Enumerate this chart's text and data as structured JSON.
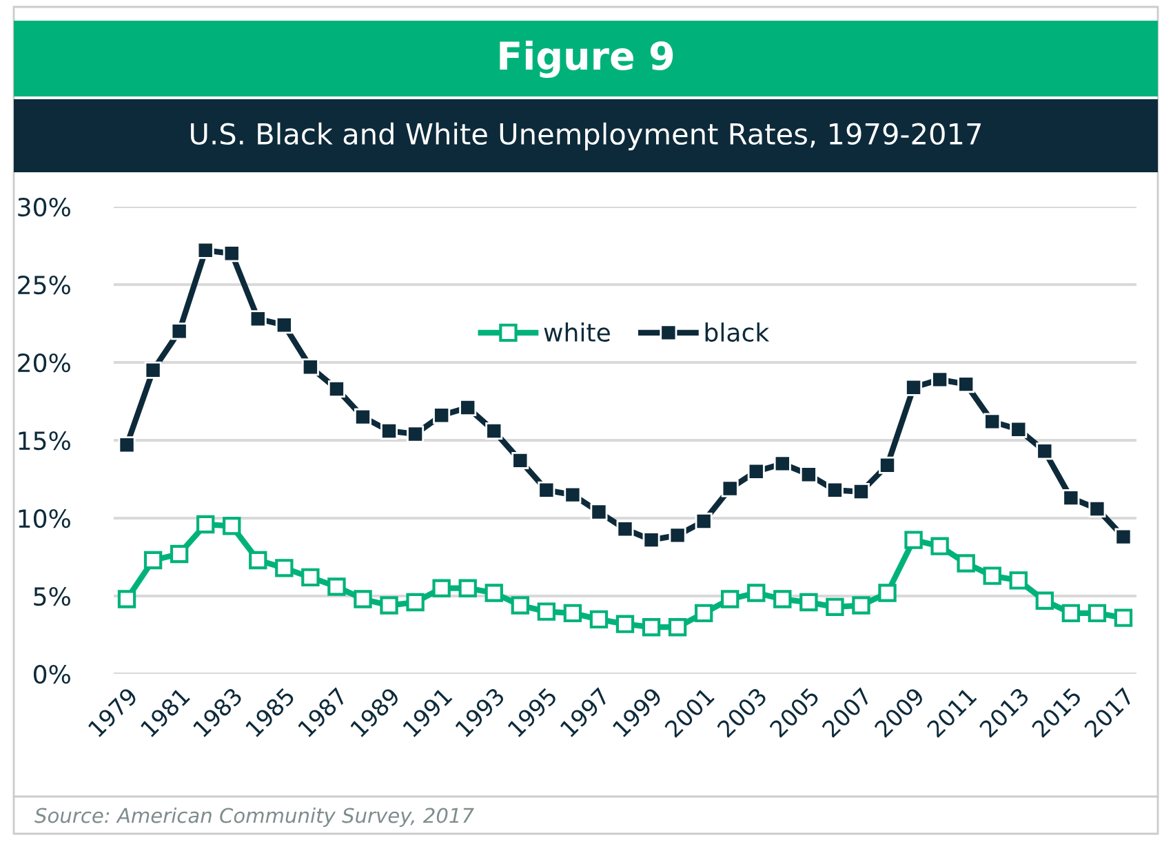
{
  "chart_data": {
    "type": "line",
    "title": "Figure 9",
    "subtitle": "U.S. Black and White Unemployment Rates, 1979-2017",
    "categories": [
      "1979",
      null,
      "1981",
      null,
      "1983",
      null,
      "1985",
      null,
      "1987",
      null,
      "1989",
      null,
      "1991",
      null,
      "1993",
      null,
      "1995",
      null,
      "1997",
      null,
      "1999",
      null,
      "2001",
      null,
      "2003",
      null,
      "2005",
      null,
      "2007",
      null,
      "2009",
      null,
      "2011",
      null,
      "2013",
      null,
      "2015",
      null,
      "2017"
    ],
    "series": [
      {
        "name": "white",
        "color": "#00b27a",
        "values": [
          4.8,
          7.3,
          7.7,
          9.6,
          9.5,
          7.3,
          6.8,
          6.2,
          5.6,
          4.8,
          4.4,
          4.6,
          5.5,
          5.5,
          5.2,
          4.4,
          4.0,
          3.9,
          3.5,
          3.2,
          3.0,
          3.0,
          3.9,
          4.8,
          5.2,
          4.8,
          4.6,
          4.3,
          4.4,
          5.2,
          8.6,
          8.2,
          7.1,
          6.3,
          6.0,
          4.7,
          3.9,
          3.9,
          3.6
        ]
      },
      {
        "name": "black",
        "color": "#0d2a3a",
        "values": [
          14.7,
          19.5,
          22.0,
          27.2,
          27.0,
          22.8,
          22.4,
          19.7,
          18.3,
          16.5,
          15.6,
          15.4,
          16.6,
          17.1,
          15.6,
          13.7,
          11.8,
          11.5,
          10.4,
          9.3,
          8.6,
          8.9,
          9.8,
          11.9,
          13.0,
          13.5,
          12.8,
          11.8,
          11.7,
          13.4,
          18.4,
          18.9,
          18.6,
          16.2,
          15.7,
          14.3,
          11.3,
          10.6,
          8.8
        ]
      }
    ],
    "ylim": [
      0,
      30
    ],
    "yticks": [
      {
        "value": 0,
        "label": "0%"
      },
      {
        "value": 5,
        "label": "5%"
      },
      {
        "value": 10,
        "label": "10%"
      },
      {
        "value": 15,
        "label": "15%"
      },
      {
        "value": 20,
        "label": "20%"
      },
      {
        "value": 25,
        "label": "25%"
      },
      {
        "value": 30,
        "label": "30%"
      }
    ],
    "grid": "y",
    "legend": "top",
    "marker": "square",
    "line_style": "solid",
    "annotations": [
      "Source: American Community Survey, 2017"
    ]
  }
}
